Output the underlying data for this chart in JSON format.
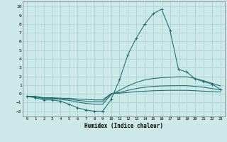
{
  "xlabel": "Humidex (Indice chaleur)",
  "background_color": "#cce8e8",
  "grid_color": "#aad4d4",
  "line_color": "#1a6b6b",
  "xlim": [
    -0.5,
    23.5
  ],
  "ylim": [
    -2.6,
    10.6
  ],
  "xticks": [
    0,
    1,
    2,
    3,
    4,
    5,
    6,
    7,
    8,
    9,
    10,
    11,
    12,
    13,
    14,
    15,
    16,
    17,
    18,
    19,
    20,
    21,
    22,
    23
  ],
  "yticks": [
    -2,
    -1,
    0,
    1,
    2,
    3,
    4,
    5,
    6,
    7,
    8,
    9,
    10
  ],
  "lines": [
    {
      "x": [
        0,
        1,
        2,
        3,
        4,
        5,
        6,
        7,
        8,
        9,
        10,
        11,
        12,
        13,
        14,
        15,
        16,
        17,
        18,
        19,
        20,
        21,
        22,
        23
      ],
      "y": [
        -0.3,
        -0.45,
        -0.7,
        -0.7,
        -0.85,
        -1.2,
        -1.6,
        -1.85,
        -2.0,
        -2.0,
        -0.65,
        1.6,
        4.5,
        6.4,
        8.0,
        9.2,
        9.7,
        7.3,
        2.8,
        2.5,
        1.7,
        1.4,
        1.1,
        0.5
      ],
      "marker": "+"
    },
    {
      "x": [
        0,
        1,
        2,
        3,
        4,
        5,
        6,
        7,
        8,
        9,
        10,
        11,
        12,
        13,
        14,
        15,
        16,
        17,
        18,
        19,
        20,
        21,
        22,
        23
      ],
      "y": [
        -0.3,
        -0.35,
        -0.55,
        -0.55,
        -0.65,
        -0.75,
        -0.95,
        -1.1,
        -1.2,
        -1.2,
        -0.1,
        0.4,
        0.9,
        1.3,
        1.6,
        1.75,
        1.85,
        1.9,
        1.95,
        1.95,
        1.75,
        1.5,
        1.2,
        0.9
      ],
      "marker": null
    },
    {
      "x": [
        0,
        1,
        2,
        3,
        4,
        5,
        6,
        7,
        8,
        9,
        10,
        11,
        12,
        13,
        14,
        15,
        16,
        17,
        18,
        19,
        20,
        21,
        22,
        23
      ],
      "y": [
        -0.3,
        -0.32,
        -0.5,
        -0.5,
        -0.55,
        -0.6,
        -0.75,
        -0.85,
        -0.9,
        -0.9,
        0.0,
        0.15,
        0.4,
        0.6,
        0.75,
        0.85,
        0.9,
        0.92,
        0.93,
        0.93,
        0.85,
        0.75,
        0.6,
        0.45
      ],
      "marker": null
    },
    {
      "x": [
        0,
        1,
        2,
        3,
        4,
        5,
        6,
        7,
        8,
        9,
        10,
        11,
        12,
        13,
        14,
        15,
        16,
        17,
        18,
        19,
        20,
        21,
        22,
        23
      ],
      "y": [
        -0.3,
        -0.3,
        -0.45,
        -0.45,
        -0.5,
        -0.52,
        -0.6,
        -0.65,
        -0.7,
        -0.7,
        0.02,
        0.07,
        0.15,
        0.25,
        0.3,
        0.35,
        0.38,
        0.4,
        0.4,
        0.4,
        0.35,
        0.3,
        0.25,
        0.2
      ],
      "marker": null
    }
  ]
}
